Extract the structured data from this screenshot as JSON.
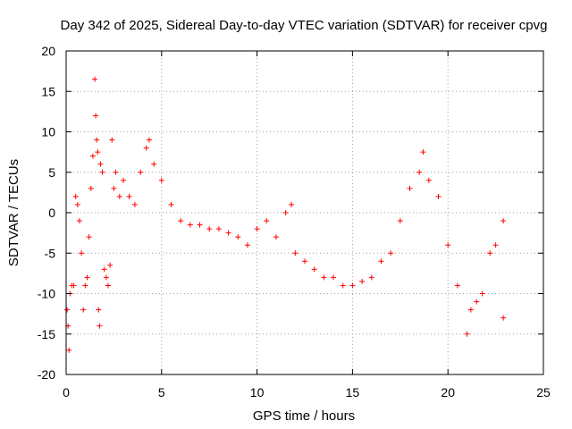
{
  "chart_data": {
    "type": "scatter",
    "title": "Day 342 of 2025, Sidereal Day-to-day VTEC variation (SDTVAR) for receiver cpvg",
    "xlabel": "GPS time / hours",
    "ylabel": "SDTVAR / TECUs",
    "xlim": [
      0,
      25
    ],
    "ylim": [
      -20,
      20
    ],
    "xticks": [
      0,
      5,
      10,
      15,
      20,
      25
    ],
    "yticks": [
      -20,
      -15,
      -10,
      -5,
      0,
      5,
      10,
      15,
      20
    ],
    "grid": true,
    "marker": "plus",
    "color": "#ff0000",
    "series": [
      {
        "name": "SDTVAR",
        "trace_points": [
          [
            0.05,
            -12
          ],
          [
            0.1,
            -14
          ],
          [
            0.15,
            -17
          ],
          [
            0.2,
            -10
          ],
          [
            0.3,
            -9
          ],
          [
            0.4,
            -9
          ],
          [
            0.5,
            2
          ],
          [
            0.6,
            1
          ],
          [
            0.7,
            -1
          ],
          [
            0.8,
            -5
          ],
          [
            0.9,
            -12
          ],
          [
            1.0,
            -9
          ],
          [
            1.1,
            -8
          ],
          [
            1.2,
            -3
          ],
          [
            1.3,
            3
          ],
          [
            1.4,
            7
          ],
          [
            1.5,
            16.5
          ],
          [
            1.55,
            12
          ],
          [
            1.6,
            9
          ],
          [
            1.65,
            7.5
          ],
          [
            1.7,
            -12
          ],
          [
            1.75,
            -14
          ],
          [
            1.8,
            6
          ],
          [
            1.9,
            5
          ],
          [
            2.0,
            -7
          ],
          [
            2.1,
            -8
          ],
          [
            2.2,
            -9
          ],
          [
            2.3,
            -6.5
          ],
          [
            2.4,
            9
          ],
          [
            2.5,
            3
          ],
          [
            2.6,
            5
          ],
          [
            2.8,
            2
          ],
          [
            3.0,
            4
          ],
          [
            3.3,
            2
          ],
          [
            3.6,
            1
          ],
          [
            3.9,
            5
          ],
          [
            4.2,
            8
          ],
          [
            4.35,
            9
          ],
          [
            4.6,
            6
          ],
          [
            5.0,
            4
          ],
          [
            5.5,
            1
          ],
          [
            6.0,
            -1
          ],
          [
            6.5,
            -1.5
          ],
          [
            7.0,
            -1.5
          ],
          [
            7.5,
            -2
          ],
          [
            8.0,
            -2
          ],
          [
            8.5,
            -2.5
          ],
          [
            9.0,
            -3
          ],
          [
            9.5,
            -4
          ],
          [
            10.0,
            -2
          ],
          [
            10.5,
            -1
          ],
          [
            11.0,
            -3
          ],
          [
            11.5,
            0
          ],
          [
            11.8,
            1
          ],
          [
            12.0,
            -5
          ],
          [
            12.5,
            -6
          ],
          [
            13.0,
            -7
          ],
          [
            13.5,
            -8
          ],
          [
            14.0,
            -8
          ],
          [
            14.5,
            -9
          ],
          [
            15.0,
            -9
          ],
          [
            15.5,
            -8.5
          ],
          [
            16.0,
            -8
          ],
          [
            16.5,
            -6
          ],
          [
            17.0,
            -5
          ],
          [
            17.5,
            -1
          ],
          [
            18.0,
            3
          ],
          [
            18.5,
            5
          ],
          [
            18.7,
            7.5
          ],
          [
            19.0,
            4
          ],
          [
            19.5,
            2
          ],
          [
            20.0,
            -4
          ],
          [
            20.5,
            -9
          ],
          [
            21.0,
            -15
          ],
          [
            21.2,
            -12
          ],
          [
            21.5,
            -11
          ],
          [
            21.8,
            -10
          ],
          [
            22.2,
            -5
          ],
          [
            22.5,
            -4
          ],
          [
            22.9,
            -1
          ],
          [
            22.9,
            -13
          ]
        ]
      }
    ]
  }
}
